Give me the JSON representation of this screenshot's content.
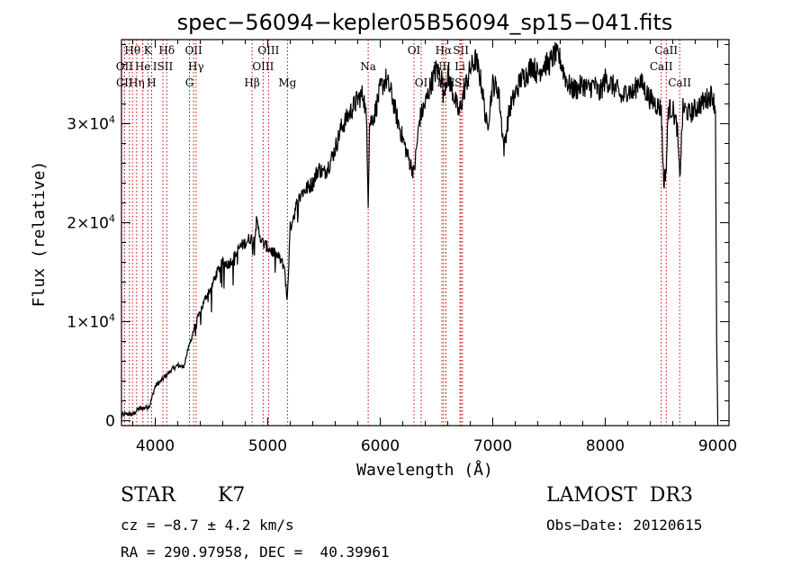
{
  "chart_data": {
    "type": "line",
    "title": "spec−56094−kepler05B56094_sp15−041.fits",
    "xlabel": "Wavelength (Å)",
    "ylabel": "Flux (relative)",
    "xlim": [
      3700,
      9100
    ],
    "ylim": [
      -500,
      38500
    ],
    "xticks": [
      {
        "value": 4000,
        "label": "4000"
      },
      {
        "value": 5000,
        "label": "5000"
      },
      {
        "value": 6000,
        "label": "6000"
      },
      {
        "value": 7000,
        "label": "7000"
      },
      {
        "value": 8000,
        "label": "8000"
      },
      {
        "value": 9000,
        "label": "9000"
      }
    ],
    "yticks": [
      {
        "value": 0,
        "label": "0",
        "exp": ""
      },
      {
        "value": 10000,
        "label": "1×10",
        "exp": "4"
      },
      {
        "value": 20000,
        "label": "2×10",
        "exp": "4"
      },
      {
        "value": 30000,
        "label": "3×10",
        "exp": "4"
      }
    ],
    "series": [
      {
        "name": "flux",
        "x": [
          3700,
          3750,
          3800,
          3850,
          3900,
          3950,
          4000,
          4050,
          4100,
          4150,
          4200,
          4250,
          4300,
          4350,
          4400,
          4450,
          4500,
          4550,
          4600,
          4650,
          4700,
          4750,
          4800,
          4850,
          4870,
          4900,
          4950,
          5000,
          5050,
          5100,
          5150,
          5170,
          5180,
          5200,
          5250,
          5300,
          5350,
          5400,
          5450,
          5500,
          5550,
          5600,
          5650,
          5700,
          5750,
          5800,
          5850,
          5880,
          5893,
          5905,
          5950,
          6000,
          6050,
          6100,
          6150,
          6200,
          6250,
          6300,
          6350,
          6400,
          6450,
          6500,
          6550,
          6563,
          6575,
          6600,
          6650,
          6700,
          6750,
          6800,
          6850,
          6900,
          6950,
          7000,
          7050,
          7100,
          7150,
          7200,
          7250,
          7300,
          7350,
          7400,
          7450,
          7500,
          7550,
          7600,
          7650,
          7700,
          7750,
          7800,
          7850,
          7900,
          7950,
          8000,
          8050,
          8100,
          8150,
          8200,
          8250,
          8300,
          8350,
          8400,
          8450,
          8498,
          8520,
          8542,
          8560,
          8600,
          8640,
          8662,
          8690,
          8700,
          8750,
          8800,
          8850,
          8900,
          8950,
          8980,
          8990,
          9000
        ],
        "values": [
          500,
          700,
          600,
          1200,
          1300,
          1500,
          3500,
          4000,
          4600,
          5200,
          5600,
          5400,
          7500,
          9500,
          11000,
          12500,
          13500,
          15000,
          16000,
          15800,
          16500,
          17500,
          18000,
          18500,
          18000,
          20000,
          18000,
          17500,
          17000,
          16500,
          15500,
          12000,
          14000,
          19500,
          21500,
          23000,
          23500,
          24000,
          25500,
          25000,
          26000,
          27500,
          29500,
          30500,
          31500,
          32500,
          33000,
          30000,
          22000,
          30000,
          31000,
          33500,
          34500,
          33000,
          30500,
          28500,
          26500,
          25000,
          30500,
          32000,
          34000,
          35500,
          34500,
          32500,
          34000,
          35000,
          33000,
          31000,
          33500,
          35500,
          36500,
          34000,
          29500,
          34000,
          33500,
          27500,
          31500,
          33000,
          34500,
          35000,
          36000,
          35000,
          36000,
          36000,
          37000,
          36500,
          34500,
          33500,
          33500,
          34000,
          33500,
          34000,
          33000,
          34500,
          34000,
          33500,
          32500,
          33500,
          33000,
          34500,
          33500,
          32500,
          32000,
          31500,
          24000,
          25500,
          31500,
          31500,
          29500,
          24500,
          31500,
          31500,
          31000,
          31500,
          32000,
          32500,
          33000,
          31500,
          8000,
          0
        ]
      }
    ],
    "line_marks": [
      {
        "label": "Hθ",
        "x": 3798,
        "row": 0
      },
      {
        "label": "K",
        "x": 3934,
        "row": 0
      },
      {
        "label": "Hδ",
        "x": 4102,
        "row": 0
      },
      {
        "label": "OII",
        "x": 4341,
        "row": 0
      },
      {
        "label": "OIII",
        "x": 5007,
        "row": 0
      },
      {
        "label": "OI",
        "x": 6300,
        "row": 0
      },
      {
        "label": "Hα",
        "x": 6563,
        "row": 0
      },
      {
        "label": "SII",
        "x": 6717,
        "row": 0
      },
      {
        "label": "CaII",
        "x": 8542,
        "row": 0
      },
      {
        "label": "OII",
        "x": 3727,
        "row": 1
      },
      {
        "label": "He",
        "x": 3889,
        "row": 1
      },
      {
        "label": "ISII",
        "x": 4068,
        "row": 1
      },
      {
        "label": "Hγ",
        "x": 4363,
        "row": 1
      },
      {
        "label": "OIII",
        "x": 4959,
        "row": 1
      },
      {
        "label": "Na",
        "x": 5893,
        "row": 1
      },
      {
        "label": "NII",
        "x": 6548,
        "row": 1
      },
      {
        "label": "Li",
        "x": 6708,
        "row": 1
      },
      {
        "label": "CaII",
        "x": 8498,
        "row": 1
      },
      {
        "label": "CII",
        "x": 3727,
        "row": 2
      },
      {
        "label": "Hη",
        "x": 3835,
        "row": 2
      },
      {
        "label": "H",
        "x": 3968,
        "row": 2
      },
      {
        "label": "G",
        "x": 4304,
        "row": 2
      },
      {
        "label": "Hβ",
        "x": 4861,
        "row": 2
      },
      {
        "label": "Mg",
        "x": 5175,
        "row": 2
      },
      {
        "label": "OI",
        "x": 6364,
        "row": 2
      },
      {
        "label": "NII",
        "x": 6584,
        "row": 2
      },
      {
        "label": "SII",
        "x": 6731,
        "row": 2
      },
      {
        "label": "CaII",
        "x": 8662,
        "row": 2
      }
    ],
    "line_marks_extra_x": [
      3770,
      3889
    ]
  },
  "info": {
    "obj_class": "STAR",
    "subclass": "K7",
    "survey": "LAMOST  DR3",
    "cz": "cz = −8.7 ± 4.2 km/s",
    "obsdate": "Obs−Date: 20120615",
    "coords": "RA = 290.97958, DEC =  40.39961"
  },
  "colors": {
    "line_marker": "#cc0000",
    "spectrum": "#000000",
    "axis": "#000000"
  }
}
